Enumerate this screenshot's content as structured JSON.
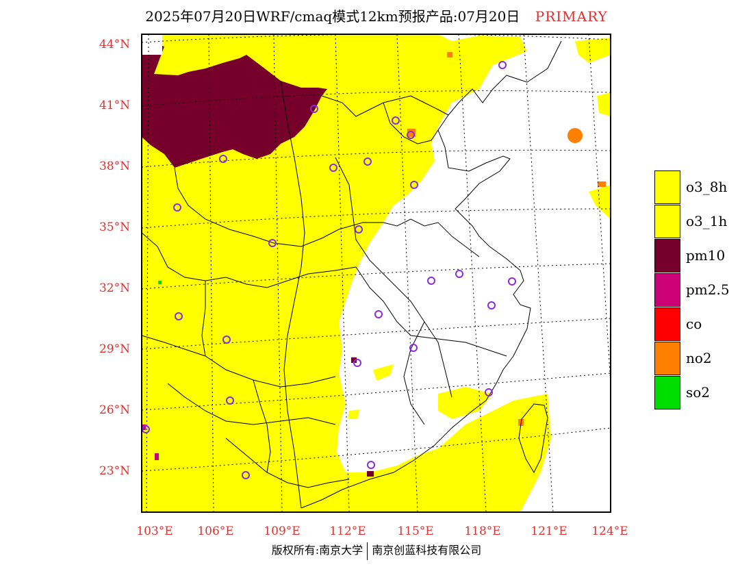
{
  "header": {
    "title": "2025年07月20日WRF/cmaq模式12km预报产品:07月20日",
    "tag": "PRIMARY"
  },
  "map": {
    "lat_labels": [
      "44°N",
      "41°N",
      "38°N",
      "35°N",
      "32°N",
      "29°N",
      "26°N",
      "23°N"
    ],
    "lon_labels": [
      "103°E",
      "106°E",
      "109°E",
      "112°E",
      "115°E",
      "118°E",
      "121°E",
      "124°E"
    ],
    "colors": {
      "o3": "#ffff00",
      "pm10": "#76002a",
      "pm25": "#cc0077",
      "co": "#ff0000",
      "no2": "#ff7f00",
      "so2": "#00dd00",
      "station_ring": "#8a2be2"
    }
  },
  "legend": {
    "items": [
      {
        "label": "o3_8h",
        "color": "#ffff00"
      },
      {
        "label": "o3_1h",
        "color": "#ffff00"
      },
      {
        "label": "pm10",
        "color": "#76002a"
      },
      {
        "label": "pm2.5",
        "color": "#cc0077"
      },
      {
        "label": "co",
        "color": "#ff0000"
      },
      {
        "label": "no2",
        "color": "#ff7f00"
      },
      {
        "label": "so2",
        "color": "#00dd00"
      }
    ]
  },
  "footer": {
    "left": "版权所有:南京大学",
    "right": "南京创蓝科技有限公司"
  }
}
